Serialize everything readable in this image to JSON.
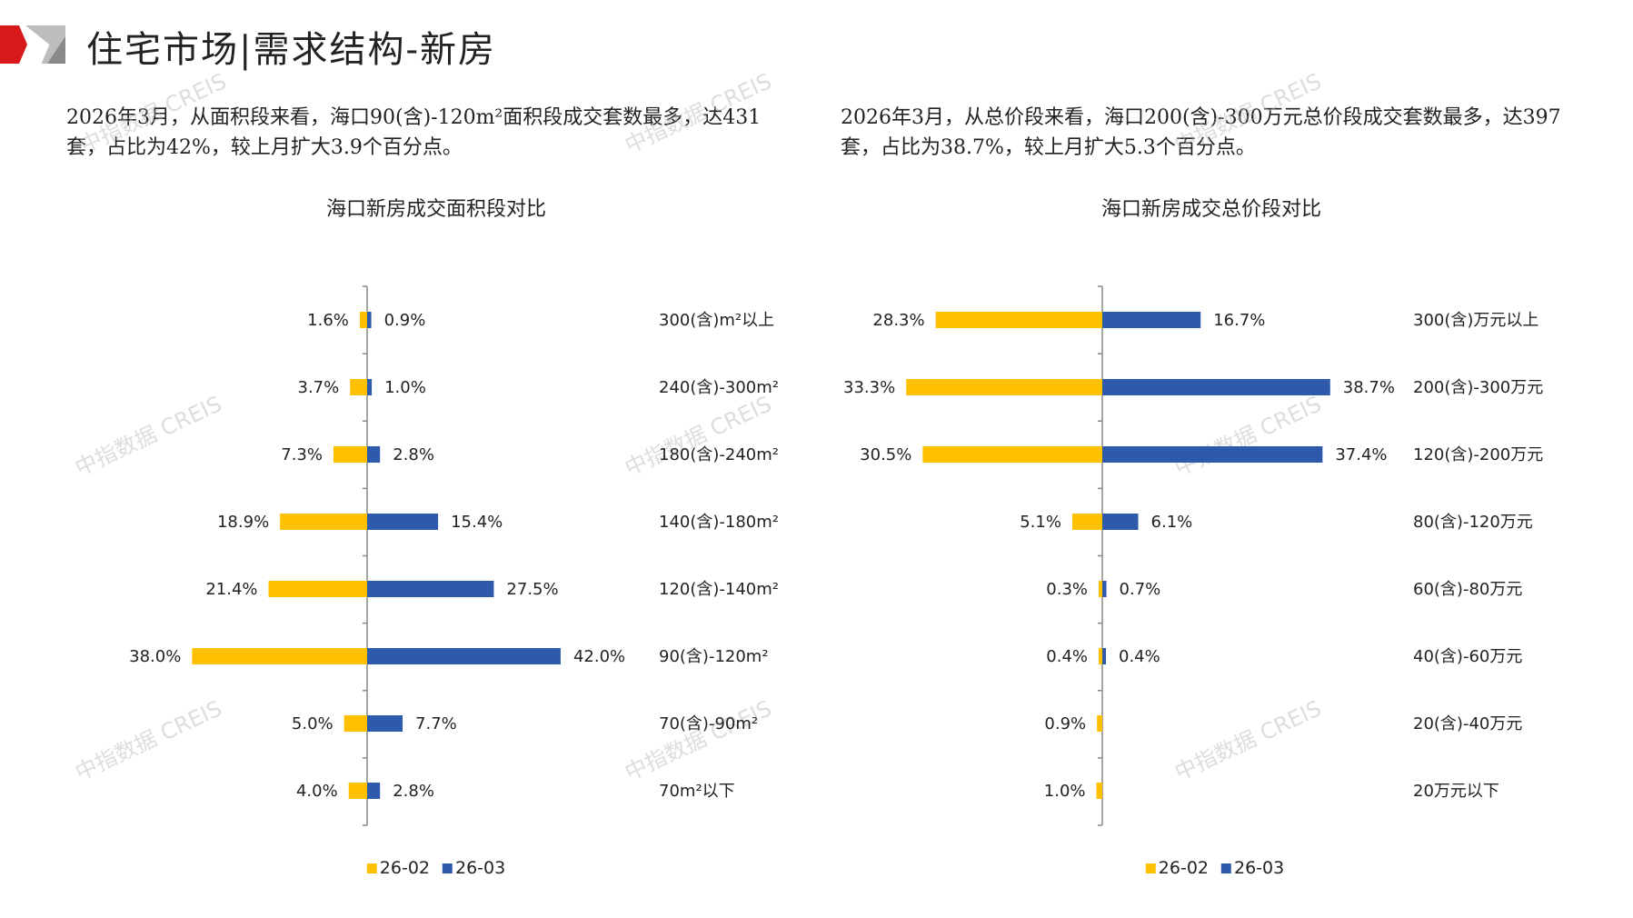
{
  "header": {
    "title": "住宅市场|需求结构-新房"
  },
  "watermark": "中指数据 CREIS",
  "left_text": "2026年3月，从面积段来看，海口90(含)-120m²面积段成交套数最多，达431套，占比为42%，较上月扩大3.9个百分点。",
  "right_text": "2026年3月，从总价段来看，海口200(含)-300万元总价段成交套数最多，达397套，占比为38.7%，较上月扩大5.3个百分点。",
  "colors": {
    "s1": "#FFC000",
    "s2": "#2E5AAC"
  },
  "chart_data": [
    {
      "type": "bar",
      "orientation": "butterfly",
      "title": "海口新房成交面积段对比",
      "categories": [
        "300(含)m²以上",
        "240(含)-300m²",
        "180(含)-240m²",
        "140(含)-180m²",
        "120(含)-140m²",
        "90(含)-120m²",
        "70(含)-90m²",
        "70m²以下"
      ],
      "series": [
        {
          "name": "26-02",
          "values": [
            1.6,
            3.7,
            7.3,
            18.9,
            21.4,
            38.0,
            5.0,
            4.0
          ]
        },
        {
          "name": "26-03",
          "values": [
            0.9,
            1.0,
            2.8,
            15.4,
            27.5,
            42.0,
            7.7,
            2.8
          ]
        }
      ],
      "unit": "%",
      "legend": "bottom"
    },
    {
      "type": "bar",
      "orientation": "butterfly",
      "title": "海口新房成交总价段对比",
      "categories": [
        "300(含)万元以上",
        "200(含)-300万元",
        "120(含)-200万元",
        "80(含)-120万元",
        "60(含)-80万元",
        "40(含)-60万元",
        "20(含)-40万元",
        "20万元以下"
      ],
      "series": [
        {
          "name": "26-02",
          "values": [
            28.3,
            33.3,
            30.5,
            5.1,
            0.3,
            0.4,
            0.9,
            1.0
          ]
        },
        {
          "name": "26-03",
          "values": [
            16.7,
            38.7,
            37.4,
            6.1,
            0.7,
            0.4,
            null,
            null
          ]
        }
      ],
      "unit": "%",
      "legend": "bottom"
    }
  ]
}
